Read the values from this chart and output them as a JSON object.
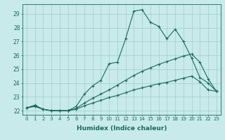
{
  "xlabel": "Humidex (Indice chaleur)",
  "bg_color": "#c8eaea",
  "line_color": "#1a6b5a",
  "grid_color": "#a0cccc",
  "xlim": [
    -0.5,
    23.5
  ],
  "ylim": [
    21.7,
    29.7
  ],
  "xticks": [
    0,
    1,
    2,
    3,
    4,
    5,
    6,
    7,
    8,
    9,
    10,
    11,
    12,
    13,
    14,
    15,
    16,
    17,
    18,
    19,
    20,
    21,
    22,
    23
  ],
  "yticks": [
    22,
    23,
    24,
    25,
    26,
    27,
    28,
    29
  ],
  "series": [
    [
      22.2,
      22.4,
      22.1,
      22.0,
      22.0,
      22.0,
      22.3,
      23.2,
      23.8,
      24.2,
      25.4,
      25.5,
      27.2,
      29.2,
      29.3,
      28.4,
      28.1,
      27.2,
      27.9,
      27.0,
      25.8,
      24.4,
      24.0,
      23.4
    ],
    [
      22.2,
      22.35,
      22.1,
      22.0,
      22.0,
      22.0,
      22.15,
      22.55,
      22.9,
      23.2,
      23.5,
      23.85,
      24.2,
      24.55,
      24.85,
      25.1,
      25.35,
      25.55,
      25.75,
      25.95,
      26.1,
      25.5,
      24.3,
      23.4
    ],
    [
      22.2,
      22.3,
      22.1,
      22.0,
      22.0,
      22.0,
      22.1,
      22.35,
      22.55,
      22.75,
      22.95,
      23.1,
      23.3,
      23.5,
      23.65,
      23.8,
      23.95,
      24.05,
      24.2,
      24.35,
      24.5,
      24.1,
      23.5,
      23.4
    ]
  ]
}
